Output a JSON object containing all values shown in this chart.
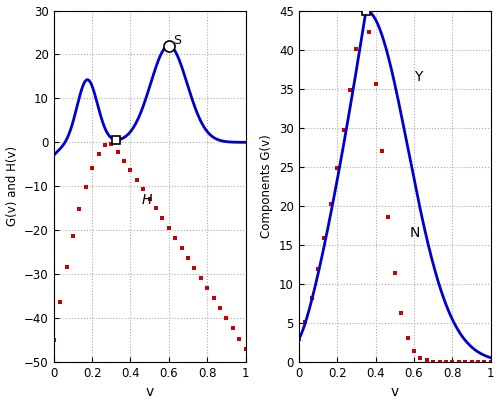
{
  "left_ylim": [
    -50,
    30
  ],
  "left_yticks": [
    -50,
    -40,
    -30,
    -20,
    -10,
    0,
    10,
    20,
    30
  ],
  "right_ylim": [
    0,
    45
  ],
  "right_yticks": [
    0,
    5,
    10,
    15,
    20,
    25,
    30,
    35,
    40,
    45
  ],
  "xlim": [
    0,
    1
  ],
  "xticks": [
    0,
    0.2,
    0.4,
    0.6,
    0.8,
    1.0
  ],
  "xticklabels": [
    "0",
    "0.2",
    "0.4",
    "0.6",
    "0.8",
    "1"
  ],
  "xlabel": "v",
  "left_ylabel": "G(v) and H(v)",
  "right_ylabel": "Components G(v)",
  "blue_color": "#0000cc",
  "red_color": "#cc0000",
  "grid_color": "#aaaaaa",
  "bg_color": "#ffffff",
  "label_S": "S",
  "label_H": "H",
  "label_Y": "Y",
  "label_N": "N",
  "figsize": [
    5.0,
    4.05
  ],
  "dpi": 100
}
